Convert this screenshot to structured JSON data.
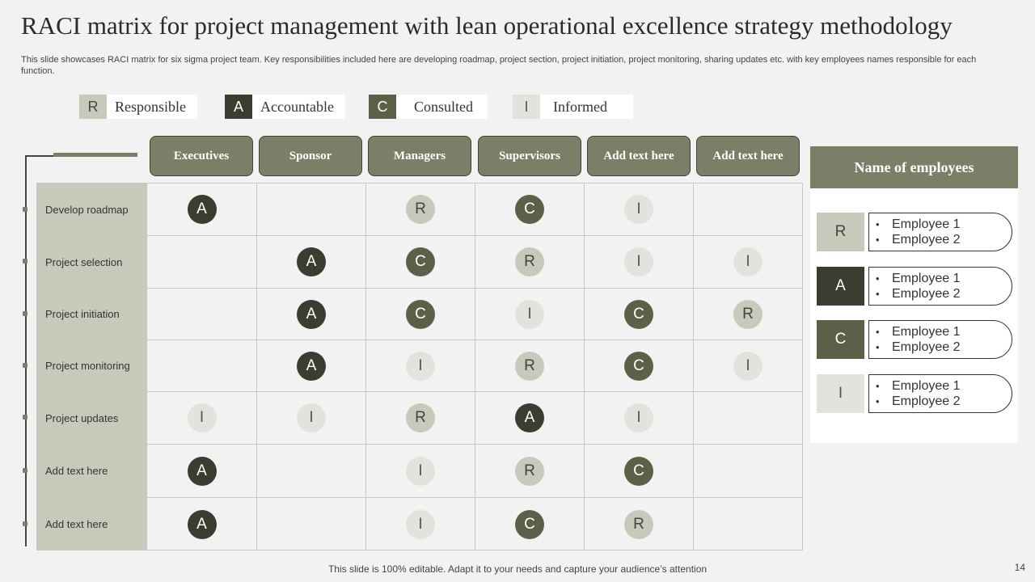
{
  "title": "RACI matrix for project management  with lean operational excellence strategy methodology",
  "subtitle": "This slide showcases RACI matrix for six sigma project team. Key responsibilities included here are developing roadmap, project section, project initiation, project monitoring, sharing updates etc. with key  employees names responsible for each function.",
  "colors": {
    "A": "#3a3d30",
    "C": "#5d6049",
    "R": "#c8c9bb",
    "I": "#e3e3dd",
    "accent": "#7a7f67"
  },
  "legend": [
    {
      "key": "R",
      "label": "Responsible"
    },
    {
      "key": "A",
      "label": "Accountable"
    },
    {
      "key": "C",
      "label": "Consulted"
    },
    {
      "key": "I",
      "label": "Informed"
    }
  ],
  "columns": [
    "Executives",
    "Sponsor",
    "Managers",
    "Supervisors",
    "Add text here",
    "Add text here"
  ],
  "rows": [
    {
      "label": "Develop  roadmap",
      "cells": [
        "A",
        "",
        "R",
        "C",
        "I",
        ""
      ]
    },
    {
      "label": "Project selection",
      "cells": [
        "",
        "A",
        "C",
        "R",
        "I",
        "I"
      ]
    },
    {
      "label": "Project initiation",
      "cells": [
        "",
        "A",
        "C",
        "I",
        "C",
        "R"
      ]
    },
    {
      "label": "Project monitoring",
      "cells": [
        "",
        "A",
        "I",
        "R",
        "C",
        "I"
      ]
    },
    {
      "label": "Project updates",
      "cells": [
        "I",
        "I",
        "R",
        "A",
        "I",
        ""
      ]
    },
    {
      "label": "Add text here",
      "cells": [
        "A",
        "",
        "I",
        "R",
        "C",
        ""
      ]
    },
    {
      "label": "Add text here",
      "cells": [
        "A",
        "",
        "I",
        "C",
        "R",
        ""
      ]
    }
  ],
  "panel": {
    "title": "Name of employees",
    "groups": [
      {
        "key": "R",
        "employees": [
          "Employee 1",
          "Employee 2"
        ]
      },
      {
        "key": "A",
        "employees": [
          "Employee 1",
          "Employee 2"
        ]
      },
      {
        "key": "C",
        "employees": [
          "Employee 1",
          "Employee 2"
        ]
      },
      {
        "key": "I",
        "employees": [
          "Employee 1",
          "Employee 2"
        ]
      }
    ]
  },
  "footer": "This slide is 100% editable. Adapt it to your needs and capture your audience’s attention",
  "page_number": "14"
}
